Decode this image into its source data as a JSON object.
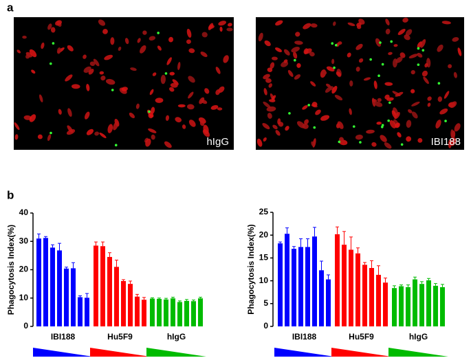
{
  "panel_labels": [
    "a",
    "b"
  ],
  "images": [
    {
      "label": "hIgG"
    },
    {
      "label": "IBI188"
    }
  ],
  "chart_data": [
    {
      "type": "bar",
      "y_label": "Phagocytosis Index(%)",
      "ylim": [
        0,
        40
      ],
      "yticks": [
        0,
        10,
        20,
        30,
        40
      ],
      "groups": [
        {
          "name": "IBI188",
          "color": "#0000ff",
          "values": [
            31,
            31.2,
            27.8,
            26.8,
            20.4,
            20.5,
            10.3,
            10.1
          ],
          "errors": [
            1.6,
            0.5,
            1,
            2.5,
            0.5,
            2,
            0.5,
            1.5
          ]
        },
        {
          "name": "Hu5F9",
          "color": "#ff0000",
          "values": [
            28.5,
            28.3,
            24.5,
            21,
            16,
            15,
            10.5,
            9.4
          ],
          "errors": [
            1.3,
            1.5,
            1.5,
            2.4,
            0.5,
            1,
            0.8,
            0.8
          ]
        },
        {
          "name": "hIgG",
          "color": "#00bb00",
          "values": [
            9.8,
            9.7,
            9.5,
            9.9,
            8.6,
            9,
            8.9,
            9.9
          ],
          "errors": [
            0.3,
            0.3,
            0.4,
            0.4,
            0.4,
            0.5,
            0.4,
            0.4
          ]
        }
      ]
    },
    {
      "type": "bar",
      "y_label": "Phagocytosis Index(%)",
      "ylim": [
        0,
        25
      ],
      "yticks": [
        0,
        5,
        10,
        15,
        20,
        25
      ],
      "groups": [
        {
          "name": "IBI188",
          "color": "#0000ff",
          "values": [
            18.2,
            20.3,
            17,
            17.4,
            17.4,
            19.7,
            12.3,
            10.3
          ],
          "errors": [
            0.3,
            1.3,
            0.5,
            1.8,
            1.8,
            2,
            2,
            1
          ]
        },
        {
          "name": "Hu5F9",
          "color": "#ff0000",
          "values": [
            20.2,
            17.9,
            16.8,
            16,
            13.5,
            12.8,
            11.3,
            9.6
          ],
          "errors": [
            1.6,
            2.9,
            2.8,
            1.2,
            0.5,
            1.6,
            2,
            1
          ]
        },
        {
          "name": "hIgG",
          "color": "#00bb00",
          "values": [
            8.4,
            8.8,
            8.6,
            10.3,
            9.3,
            10.1,
            8.9,
            8.6
          ],
          "errors": [
            0.5,
            0.3,
            0.5,
            0.5,
            0.5,
            0.4,
            0.5,
            0.6
          ]
        }
      ]
    }
  ]
}
